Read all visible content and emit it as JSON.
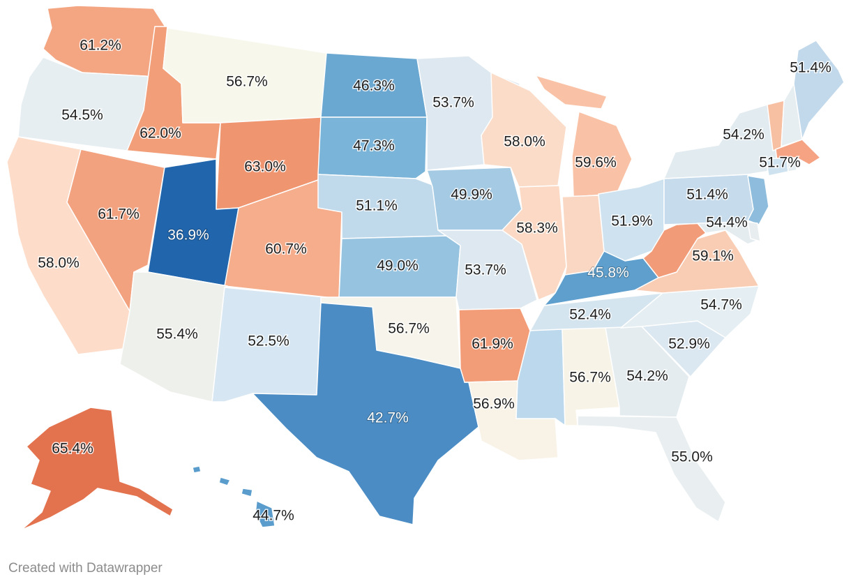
{
  "credit": "Created with Datawrapper",
  "map": {
    "type": "choropleth",
    "region": "United States",
    "color_scale": {
      "low": "#2166ac",
      "mid": "#f7f7f0",
      "high": "#e0714f"
    },
    "states": [
      {
        "code": "WA",
        "value": "61.2%",
        "color": "#f4a582"
      },
      {
        "code": "OR",
        "value": "54.5%",
        "color": "#e6eef2"
      },
      {
        "code": "CA",
        "value": "58.0%",
        "color": "#fddcc9"
      },
      {
        "code": "ID",
        "value": "62.0%",
        "color": "#f19e79"
      },
      {
        "code": "NV",
        "value": "61.7%",
        "color": "#f3a27f"
      },
      {
        "code": "MT",
        "value": "56.7%",
        "color": "#f7f7ec"
      },
      {
        "code": "WY",
        "value": "63.0%",
        "color": "#ef9570"
      },
      {
        "code": "UT",
        "value": "36.9%",
        "color": "#2166ac"
      },
      {
        "code": "CO",
        "value": "60.7%",
        "color": "#f6ad8c"
      },
      {
        "code": "AZ",
        "value": "55.4%",
        "color": "#eef0ec"
      },
      {
        "code": "NM",
        "value": "52.5%",
        "color": "#d6e6f2"
      },
      {
        "code": "ND",
        "value": "46.3%",
        "color": "#6aa8d2"
      },
      {
        "code": "SD",
        "value": "47.3%",
        "color": "#7ab4d8"
      },
      {
        "code": "NE",
        "value": "51.1%",
        "color": "#c0d9eb"
      },
      {
        "code": "KS",
        "value": "49.0%",
        "color": "#96c3e0"
      },
      {
        "code": "OK",
        "value": "56.7%",
        "color": "#f7f5eb"
      },
      {
        "code": "TX",
        "value": "42.7%",
        "color": "#4a8cc3"
      },
      {
        "code": "MN",
        "value": "53.7%",
        "color": "#dde8f0"
      },
      {
        "code": "IA",
        "value": "49.9%",
        "color": "#a5cae3"
      },
      {
        "code": "MO",
        "value": "53.7%",
        "color": "#dde8f0"
      },
      {
        "code": "AR",
        "value": "61.9%",
        "color": "#f29d78"
      },
      {
        "code": "LA",
        "value": "56.9%",
        "color": "#f9f2e7"
      },
      {
        "code": "WI",
        "value": "58.0%",
        "color": "#fbdcc8"
      },
      {
        "code": "IL",
        "value": "58.3%",
        "color": "#fbd9c4"
      },
      {
        "code": "MI",
        "value": "59.6%",
        "color": "#f9c2a6"
      },
      {
        "code": "IN",
        "value": "",
        "color": "#fad7c3"
      },
      {
        "code": "OH",
        "value": "51.9%",
        "color": "#cfe2ef"
      },
      {
        "code": "KY",
        "value": "45.8%",
        "color": "#5e9fcd"
      },
      {
        "code": "TN",
        "value": "52.4%",
        "color": "#d5e5f0"
      },
      {
        "code": "MS",
        "value": "",
        "color": "#bcd8ec"
      },
      {
        "code": "AL",
        "value": "56.7%",
        "color": "#f7f3e6"
      },
      {
        "code": "GA",
        "value": "54.2%",
        "color": "#e4ecf0"
      },
      {
        "code": "FL",
        "value": "55.0%",
        "color": "#e9eff0"
      },
      {
        "code": "SC",
        "value": "52.9%",
        "color": "#dbe8f1"
      },
      {
        "code": "NC",
        "value": "54.7%",
        "color": "#e5eef2"
      },
      {
        "code": "VA",
        "value": "59.1%",
        "color": "#f9cdb4"
      },
      {
        "code": "WV",
        "value": "",
        "color": "#f29b78"
      },
      {
        "code": "PA",
        "value": "51.4%",
        "color": "#c6dcec"
      },
      {
        "code": "NY",
        "value": "54.2%",
        "color": "#e2ebf0"
      },
      {
        "code": "NJ",
        "value": "",
        "color": "#8dbcdc"
      },
      {
        "code": "MD",
        "value": "54.4%",
        "color": "#e4ecf0"
      },
      {
        "code": "DE",
        "value": "",
        "color": "#e8eef0"
      },
      {
        "code": "VT",
        "value": "",
        "color": "#f8c0a2"
      },
      {
        "code": "NH",
        "value": "",
        "color": "#e6eef2"
      },
      {
        "code": "ME",
        "value": "51.4%",
        "color": "#c2d9ec"
      },
      {
        "code": "MA",
        "value": "51.7%",
        "color": "#f5a383"
      },
      {
        "code": "CT",
        "value": "",
        "color": "#cfe2ef"
      },
      {
        "code": "RI",
        "value": "",
        "color": "#e6eef2"
      },
      {
        "code": "AK",
        "value": "65.4%",
        "color": "#e3734f"
      },
      {
        "code": "HI",
        "value": "44.7%",
        "color": "#5a9ccc"
      }
    ]
  }
}
